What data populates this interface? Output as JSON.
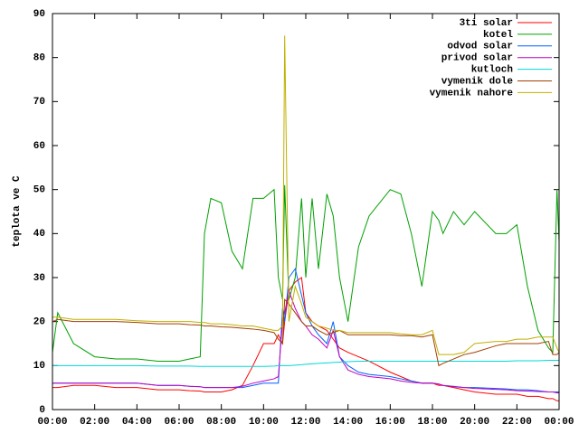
{
  "chart_data": {
    "type": "line",
    "y_label": "teplota ve C",
    "x": [
      0,
      0.25,
      1,
      2,
      3,
      4,
      5,
      6,
      6.5,
      7,
      7.2,
      7.5,
      8,
      8.5,
      9,
      9.5,
      10,
      10.5,
      10.7,
      10.9,
      11,
      11.2,
      11.5,
      11.8,
      12,
      12.3,
      12.6,
      13,
      13.3,
      13.6,
      14,
      14.5,
      15,
      16,
      16.5,
      17,
      17.5,
      18,
      18.3,
      18.5,
      19,
      19.5,
      20,
      21,
      21.5,
      22,
      22.5,
      23,
      23.5,
      23.7,
      23.9,
      24
    ],
    "xlim": [
      0,
      24
    ],
    "xticks": [
      {
        "value": 0,
        "label": "00:00"
      },
      {
        "value": 2,
        "label": "02:00"
      },
      {
        "value": 4,
        "label": "04:00"
      },
      {
        "value": 6,
        "label": "06:00"
      },
      {
        "value": 8,
        "label": "08:00"
      },
      {
        "value": 10,
        "label": "10:00"
      },
      {
        "value": 12,
        "label": "12:00"
      },
      {
        "value": 14,
        "label": "14:00"
      },
      {
        "value": 16,
        "label": "16:00"
      },
      {
        "value": 18,
        "label": "18:00"
      },
      {
        "value": 20,
        "label": "20:00"
      },
      {
        "value": 22,
        "label": "22:00"
      },
      {
        "value": 24,
        "label": "00:00"
      }
    ],
    "ylim": [
      0,
      90
    ],
    "yticks": [
      0,
      10,
      20,
      30,
      40,
      50,
      60,
      70,
      80,
      90
    ],
    "grid": false,
    "legend": "top-right",
    "series": [
      {
        "name": "3ti solar",
        "color": "#ff0000",
        "values": [
          5,
          5,
          5.5,
          5.5,
          5,
          5,
          4.5,
          4.5,
          4.3,
          4.2,
          4,
          4,
          4,
          4.5,
          5.5,
          10,
          15,
          15,
          17,
          15,
          20,
          27,
          29,
          30,
          22,
          20,
          19,
          18,
          16,
          14,
          13,
          12,
          11,
          8.5,
          7.5,
          6.5,
          6,
          6,
          5.5,
          5.5,
          5,
          4.5,
          4,
          3.5,
          3.5,
          3.5,
          3,
          3,
          2.5,
          2.5,
          2,
          2
        ]
      },
      {
        "name": "kotel",
        "color": "#00a000",
        "values": [
          13,
          22,
          15,
          12,
          11.5,
          11.5,
          11,
          11,
          11.5,
          12,
          40,
          48,
          47,
          36,
          32,
          48,
          48,
          50,
          30,
          25,
          51,
          25,
          30,
          48,
          30,
          48,
          32,
          49,
          44,
          30,
          20,
          37,
          44,
          50,
          49,
          40,
          28,
          45,
          43,
          40,
          45,
          42,
          45,
          40,
          40,
          42,
          28,
          18,
          14,
          13,
          50,
          38
        ]
      },
      {
        "name": "odvod solar",
        "color": "#0060ff",
        "values": [
          6,
          6,
          6,
          6,
          6,
          6,
          5.5,
          5.5,
          5.3,
          5.2,
          5,
          5,
          5,
          5,
          5,
          5.5,
          6,
          6,
          6,
          23,
          20,
          30,
          32,
          26,
          22,
          19,
          17,
          15,
          20,
          12,
          10,
          8.5,
          8,
          7.5,
          7,
          6.5,
          6,
          6,
          5.8,
          5.5,
          5.3,
          5,
          5,
          4.8,
          4.7,
          4.5,
          4.5,
          4.3,
          4,
          4,
          4,
          4
        ]
      },
      {
        "name": "privod solar",
        "color": "#c000c0",
        "values": [
          6,
          6,
          6,
          6,
          6,
          6,
          5.5,
          5.5,
          5.3,
          5.2,
          5,
          5,
          5,
          5,
          5.3,
          6,
          6.5,
          7,
          7.5,
          20,
          22,
          27,
          23,
          20,
          19,
          17,
          16,
          14,
          18,
          12,
          9,
          8,
          7.5,
          7,
          6.5,
          6.2,
          6,
          6,
          5.8,
          5.5,
          5.2,
          5,
          4.8,
          4.6,
          4.5,
          4.3,
          4.2,
          4.1,
          4,
          4,
          3.8,
          3.8
        ]
      },
      {
        "name": "kutloch",
        "color": "#00d8d8",
        "values": [
          10,
          10,
          10,
          10,
          10,
          10,
          9.9,
          9.9,
          9.9,
          9.8,
          9.8,
          9.8,
          9.8,
          9.8,
          9.8,
          9.8,
          9.8,
          9.9,
          10,
          10,
          10,
          10,
          10.1,
          10.2,
          10.3,
          10.4,
          10.5,
          10.6,
          10.7,
          10.8,
          10.9,
          11,
          11,
          11,
          11,
          11,
          11,
          11,
          11,
          11,
          11,
          11,
          11,
          11,
          11,
          11.1,
          11.1,
          11.1,
          11.2,
          11.2,
          11.2,
          11.2
        ]
      },
      {
        "name": "vymenik dole",
        "color": "#a04000",
        "values": [
          20,
          20.5,
          20,
          20,
          20,
          19.8,
          19.5,
          19.5,
          19.3,
          19.2,
          19,
          19,
          18.8,
          18.7,
          18.5,
          18.3,
          18,
          17.5,
          16,
          15,
          25,
          24,
          22,
          20,
          19,
          19,
          18,
          17,
          17.5,
          18,
          17,
          17,
          17,
          17,
          16.8,
          16.8,
          16.5,
          17,
          10,
          10.5,
          11.5,
          12.5,
          13,
          14.5,
          15,
          15,
          15,
          15,
          15.5,
          12.5,
          12.5,
          13
        ]
      },
      {
        "name": "vymenik nahore",
        "color": "#c0b000",
        "values": [
          21,
          21,
          20.5,
          20.5,
          20.5,
          20.2,
          20,
          20,
          20,
          19.8,
          19.8,
          19.5,
          19.5,
          19.3,
          19,
          19,
          18.5,
          18,
          18,
          19,
          85,
          20,
          28,
          24,
          21,
          20,
          19,
          18.5,
          18,
          18,
          17.5,
          17.5,
          17.5,
          17.5,
          17.2,
          17,
          17,
          18,
          12.5,
          12.5,
          12.5,
          13,
          15,
          15.5,
          15.5,
          16,
          16,
          16.5,
          16.5,
          16.5,
          14,
          13
        ]
      }
    ]
  }
}
